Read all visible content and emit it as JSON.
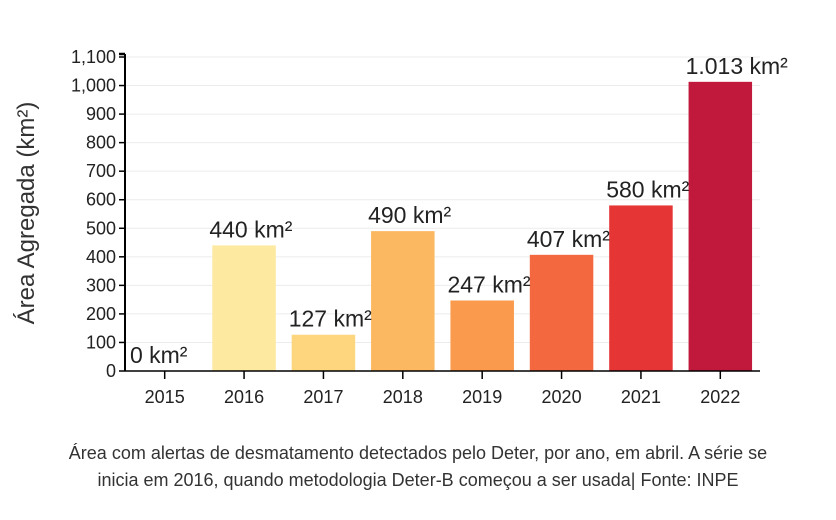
{
  "chart_data": {
    "type": "bar",
    "categories": [
      "2015",
      "2016",
      "2017",
      "2018",
      "2019",
      "2020",
      "2021",
      "2022"
    ],
    "values": [
      0,
      440,
      127,
      490,
      247,
      407,
      580,
      1013
    ],
    "data_labels": [
      "0 km²",
      "440 km²",
      "127 km²",
      "490 km²",
      "247 km²",
      "407 km²",
      "580 km²",
      "1.013 km²"
    ],
    "colors": [
      "#fff0a8",
      "#fde9a0",
      "#fdd67e",
      "#fcb860",
      "#fa9a4c",
      "#f4683f",
      "#e53535",
      "#c1193b"
    ],
    "ylabel": "Área Agregada (km²)",
    "xlabel": "",
    "ylim": [
      0,
      1100
    ],
    "yticks": [
      "0",
      "100",
      "200",
      "300",
      "400",
      "500",
      "600",
      "700",
      "800",
      "900",
      "1,000",
      "1,100"
    ],
    "grid": true
  },
  "caption": {
    "line1": "Área com alertas de desmatamento detectados pelo Deter, por ano, em abril. A série se",
    "line2": "inicia em 2016, quando metodologia Deter-B começou a ser usada| Fonte: INPE"
  }
}
